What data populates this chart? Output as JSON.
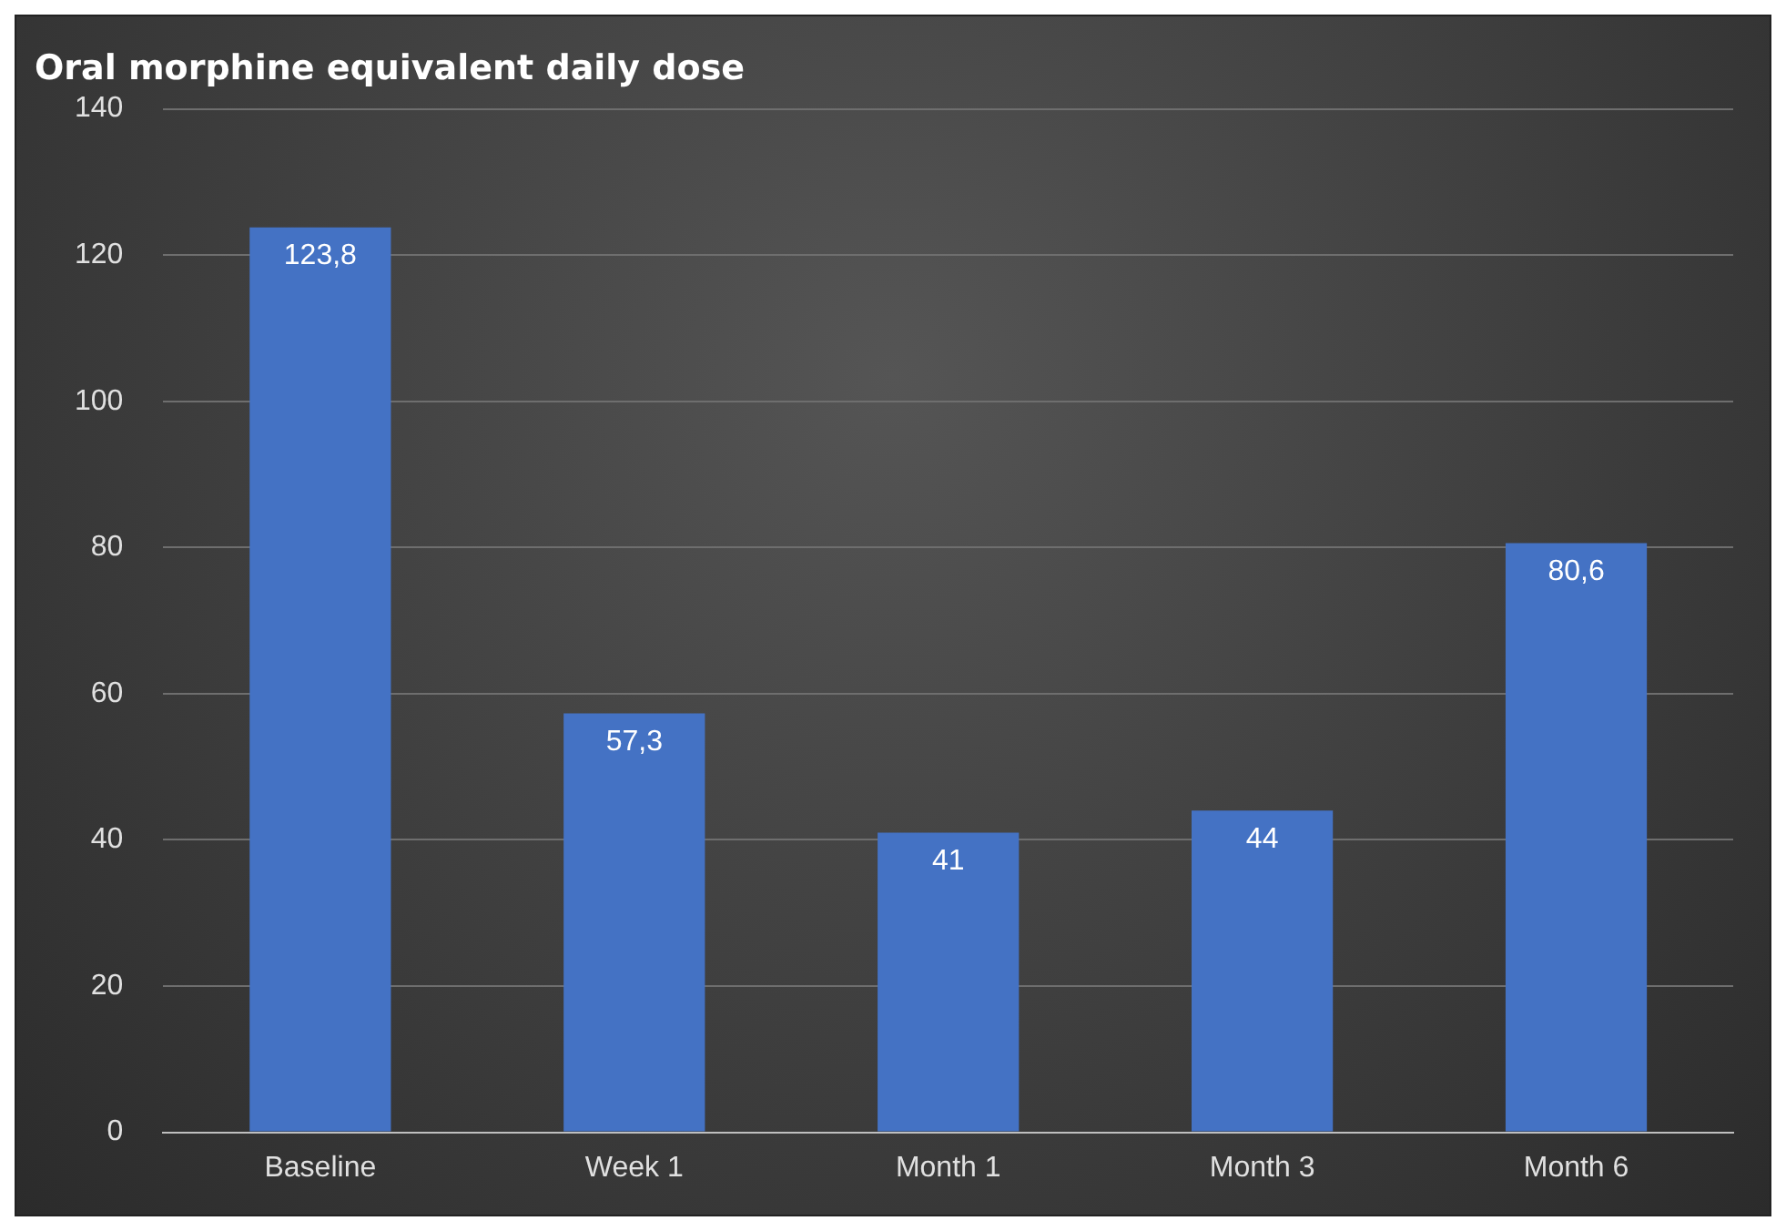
{
  "chart_data": {
    "type": "bar",
    "title": "Oral morphine equivalent daily dose",
    "categories": [
      "Baseline",
      "Week 1",
      "Month 1",
      "Month 3",
      "Month 6"
    ],
    "values": [
      123.8,
      57.3,
      41,
      44,
      80.6
    ],
    "value_labels": [
      "123,8",
      "57,3",
      "41",
      "44",
      "80,6"
    ],
    "color": "#4472c4",
    "ylim": [
      0,
      140
    ],
    "yticks": [
      0,
      20,
      40,
      60,
      80,
      100,
      120,
      140
    ],
    "grid": "y",
    "legend": false
  }
}
